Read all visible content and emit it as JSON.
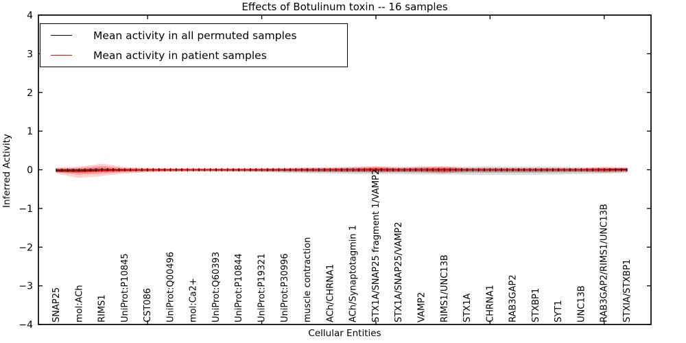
{
  "figure": {
    "background": "#ffffff"
  },
  "legend": {
    "position": "upper left",
    "entries": [
      {
        "label": "Mean activity in all permuted samples",
        "color": "#000000"
      },
      {
        "label": "Mean activity in patient samples",
        "color": "#ff0000"
      }
    ]
  },
  "chart_data": {
    "type": "line",
    "title": "Effects of Botulinum toxin -- 16 samples",
    "xlabel": "Cellular Entities",
    "ylabel": "Inferred Activity",
    "ylim": [
      -4,
      4
    ],
    "yticks": [
      4,
      3,
      2,
      1,
      0,
      -1,
      -2,
      -3,
      -4
    ],
    "ytick_labels": [
      "4",
      "3",
      "2",
      "1",
      "0",
      "−1",
      "−2",
      "−3",
      "−4"
    ],
    "x_major_tick_indices": [
      4,
      9,
      14,
      19,
      24
    ],
    "grid": false,
    "legend_position": "upper left",
    "categories": [
      "SNAP25",
      "mol:ACh",
      "RIMS1",
      "UniProt:P10845",
      "CST086",
      "UniProt:Q00496",
      "mol:Ca2+",
      "UniProt:Q60393",
      "UniProt:P10844",
      "UniProt:P19321",
      "UniProt:P30996",
      "muscle contraction",
      "ACh/CHRNA1",
      "ACh/Synaptotagmin 1",
      "STX1A/SNAP25 fragment 1/VAMP2",
      "STX1A/SNAP25/VAMP2",
      "VAMP2",
      "RIMS1/UNC13B",
      "STX1A",
      "CHRNA1",
      "RAB3GAP2",
      "STXBP1",
      "SYT1",
      "UNC13B",
      "RAB3GAP2/RIMS1/UNC13B",
      "STXIA/STXBP1"
    ],
    "series": [
      {
        "name": "Mean activity in all permuted samples",
        "color": "#000000",
        "values": [
          -0.01,
          -0.01,
          0,
          0,
          0,
          0,
          0,
          0,
          0,
          0,
          0,
          0,
          0,
          0,
          0,
          0,
          0,
          0,
          0,
          0,
          0,
          0,
          0,
          0,
          0,
          0
        ]
      },
      {
        "name": "Mean activity in patient samples",
        "color": "#ff0000",
        "values": [
          -0.04,
          -0.05,
          -0.02,
          -0.01,
          0,
          0,
          0,
          0,
          0,
          0,
          0,
          0,
          0,
          0,
          0.01,
          0,
          0,
          0.01,
          0,
          0,
          0,
          0,
          0,
          0,
          0.01,
          0.02
        ]
      }
    ],
    "bands": [
      {
        "name": "permuted samples spread",
        "color": "#000000",
        "hi": [
          0.03,
          0.03,
          0.04,
          0.03,
          0.03,
          0.03,
          0.03,
          0.03,
          0.03,
          0.04,
          0.05,
          0.06,
          0.07,
          0.08,
          0.08,
          0.08,
          0.08,
          0.08,
          0.08,
          0.09,
          0.08,
          0.08,
          0.08,
          0.07,
          0.06,
          0.05
        ],
        "lo": [
          -0.04,
          -0.05,
          -0.06,
          -0.05,
          -0.05,
          -0.04,
          -0.04,
          -0.04,
          -0.05,
          -0.06,
          -0.08,
          -0.09,
          -0.1,
          -0.11,
          -0.11,
          -0.11,
          -0.12,
          -0.12,
          -0.13,
          -0.13,
          -0.13,
          -0.13,
          -0.12,
          -0.11,
          -0.1,
          -0.08
        ]
      },
      {
        "name": "patient samples spread",
        "color": "#ff0000",
        "hi": [
          0.06,
          0.08,
          0.16,
          0.07,
          0.05,
          0.04,
          0.04,
          0.04,
          0.04,
          0.04,
          0.04,
          0.05,
          0.05,
          0.06,
          0.1,
          0.05,
          0.08,
          0.1,
          0.04,
          0.04,
          0.04,
          0.04,
          0.04,
          0.04,
          0.08,
          0.06
        ],
        "lo": [
          -0.1,
          -0.21,
          -0.16,
          -0.1,
          -0.07,
          -0.06,
          -0.05,
          -0.05,
          -0.05,
          -0.05,
          -0.05,
          -0.06,
          -0.06,
          -0.06,
          -0.08,
          -0.06,
          -0.06,
          -0.1,
          -0.04,
          -0.05,
          -0.05,
          -0.05,
          -0.05,
          -0.05,
          -0.08,
          -0.06
        ]
      }
    ]
  }
}
